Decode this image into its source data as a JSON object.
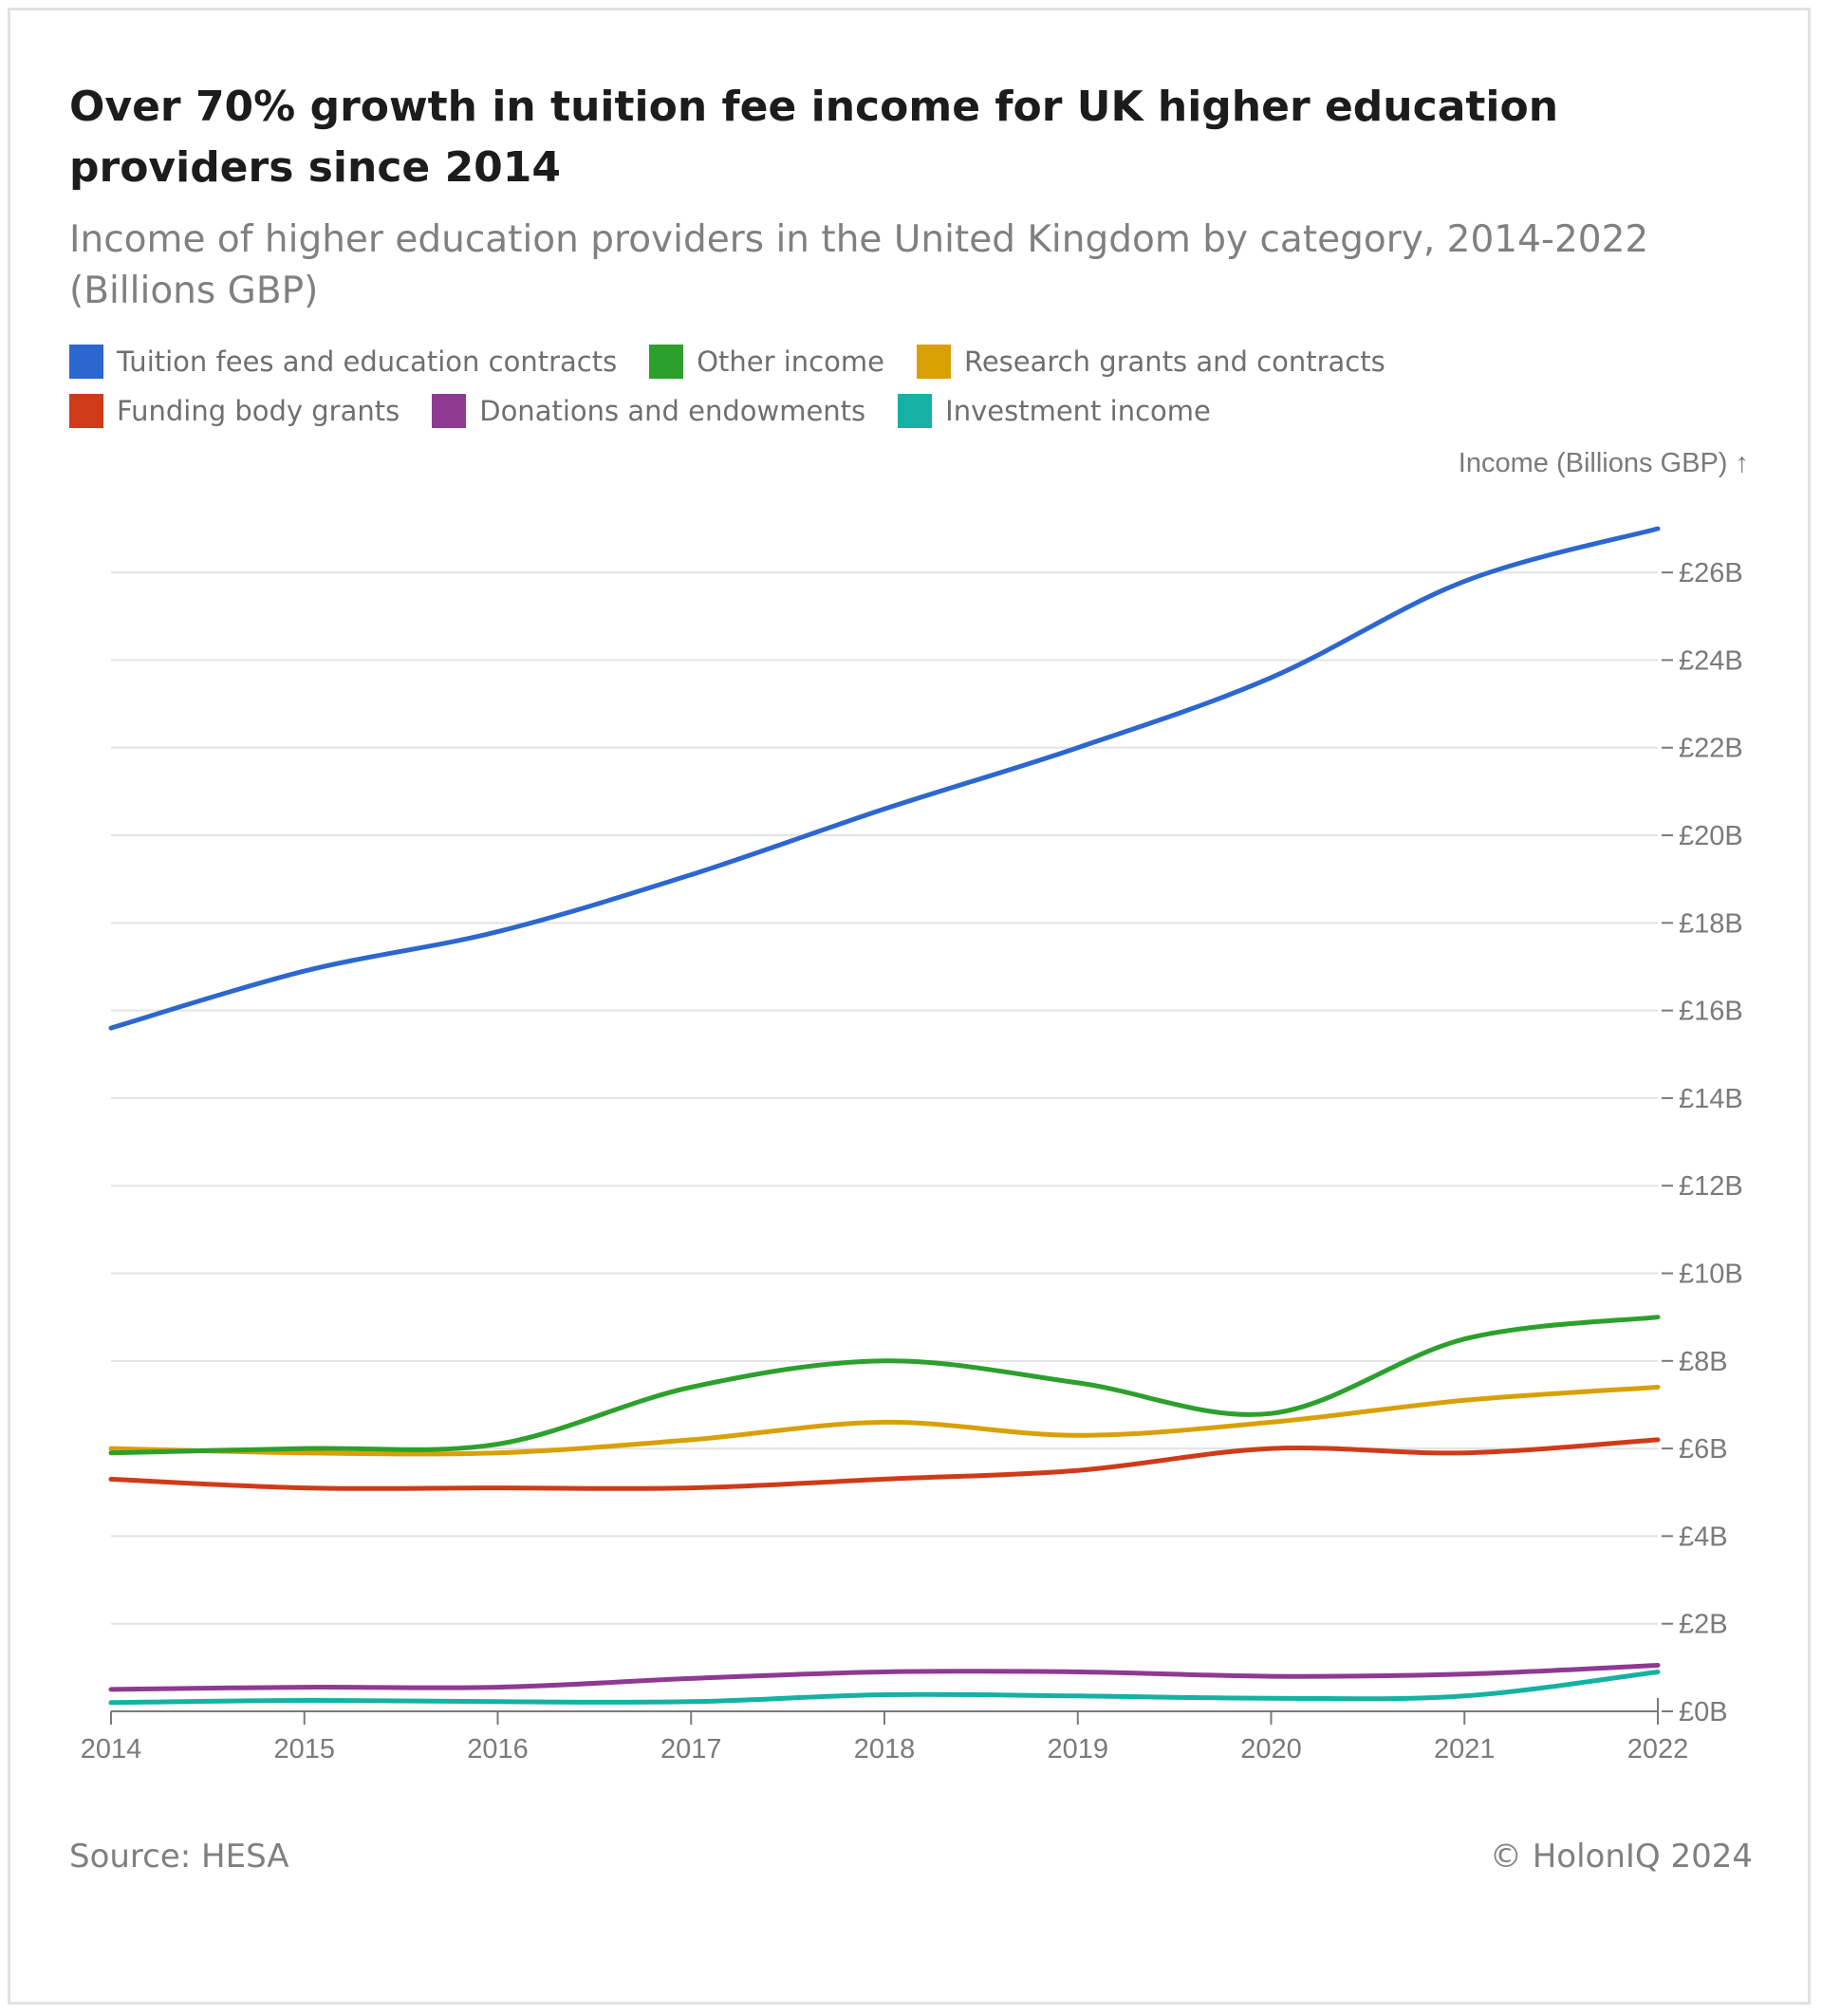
{
  "title": "Over 70% growth in tuition fee income for UK higher education providers since 2014",
  "subtitle": "Income of higher education providers in the United Kingdom by category, 2014-2022 (Billions GBP)",
  "source": "Source: HESA",
  "credit": "© HolonIQ 2024",
  "chart_data": {
    "type": "line",
    "ylabel": "Income (Billions GBP) ↑",
    "xlabel": "",
    "x": [
      "2014",
      "2015",
      "2016",
      "2017",
      "2018",
      "2019",
      "2020",
      "2021",
      "2022"
    ],
    "ylim": [
      0,
      27
    ],
    "y_ticks": [
      0,
      2,
      4,
      6,
      8,
      10,
      12,
      14,
      16,
      18,
      20,
      22,
      24,
      26
    ],
    "y_tick_labels": [
      "£0B",
      "£2B",
      "£4B",
      "£6B",
      "£8B",
      "£10B",
      "£12B",
      "£14B",
      "£16B",
      "£18B",
      "£20B",
      "£22B",
      "£24B",
      "£26B"
    ],
    "y_axis_position": "right",
    "grid": true,
    "legend_position": "top-left",
    "series": [
      {
        "name": "Tuition fees and education contracts",
        "color": "#2c67cf",
        "values": [
          15.6,
          16.9,
          17.8,
          19.1,
          20.6,
          22.0,
          23.6,
          25.8,
          27.0
        ]
      },
      {
        "name": "Other income",
        "color": "#2ca02c",
        "values": [
          5.9,
          6.0,
          6.1,
          7.4,
          8.0,
          7.5,
          6.8,
          8.5,
          9.0
        ]
      },
      {
        "name": "Research grants and contracts",
        "color": "#d9a006",
        "values": [
          6.0,
          5.9,
          5.9,
          6.2,
          6.6,
          6.3,
          6.6,
          7.1,
          7.4
        ]
      },
      {
        "name": "Funding body grants",
        "color": "#cf3b19",
        "values": [
          5.3,
          5.1,
          5.1,
          5.1,
          5.3,
          5.5,
          6.0,
          5.9,
          6.2
        ]
      },
      {
        "name": "Donations and endowments",
        "color": "#8e3a92",
        "values": [
          0.5,
          0.55,
          0.55,
          0.75,
          0.9,
          0.9,
          0.8,
          0.85,
          1.05
        ]
      },
      {
        "name": "Investment income",
        "color": "#14b1a4",
        "values": [
          0.2,
          0.25,
          0.22,
          0.22,
          0.38,
          0.35,
          0.3,
          0.35,
          0.9
        ]
      }
    ]
  }
}
